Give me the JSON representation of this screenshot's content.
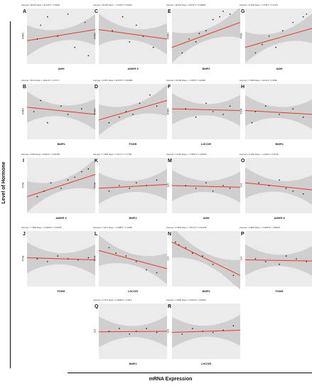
{
  "figure": {
    "y_label": "Level of Hormone",
    "x_label": "mRNA Expression"
  },
  "chart_data": [
    {
      "type": "scatter",
      "panel": "A",
      "equation": "Intercept = 68.604  Slope = 46.120  P = 0.42949",
      "xlabel": "AMH",
      "ylabel": "AMH",
      "ylim": [
        0,
        1
      ],
      "x": [
        0.15,
        0.2,
        0.3,
        0.45,
        0.6,
        0.7,
        0.85,
        0.9
      ],
      "y": [
        0.45,
        0.7,
        0.85,
        0.5,
        0.9,
        0.3,
        0.75,
        0.15
      ],
      "fit": [
        0.42,
        0.62
      ]
    },
    {
      "type": "scatter",
      "panel": "C",
      "equation": "Intercept = 68.336  Slope = -72.035  P = 0.46219",
      "xlabel": "AMHR II",
      "ylabel": "AMH",
      "ylim": [
        0,
        1
      ],
      "x": [
        0.2,
        0.35,
        0.45,
        0.55,
        0.65,
        0.8
      ],
      "y": [
        0.6,
        0.85,
        0.4,
        0.7,
        0.5,
        0.3
      ],
      "fit": [
        0.62,
        0.45
      ]
    },
    {
      "type": "scatter",
      "panel": "E",
      "equation": "Intercept = 48.918  Slope = 33.679  P = 0.038009",
      "xlabel": "BMP2",
      "ylabel": "AMH",
      "ylim": [
        0,
        1
      ],
      "x": [
        0.15,
        0.25,
        0.35,
        0.4,
        0.5,
        0.6,
        0.7,
        0.75,
        0.85
      ],
      "y": [
        0.2,
        0.45,
        0.4,
        0.55,
        0.6,
        0.8,
        0.85,
        0.95,
        0.9
      ],
      "fit": [
        0.3,
        0.75
      ]
    },
    {
      "type": "scatter",
      "panel": "G",
      "equation": "Intercept = 6.4440  Slope = 3.4793  P = 0.12101",
      "xlabel": "AMH",
      "ylabel": "FSH",
      "ylim": [
        0,
        1
      ],
      "x": [
        0.15,
        0.25,
        0.35,
        0.45,
        0.55,
        0.7,
        0.85,
        0.9
      ],
      "y": [
        0.2,
        0.35,
        0.5,
        0.3,
        0.6,
        0.75,
        0.85,
        0.9
      ],
      "fit": [
        0.3,
        0.65
      ]
    },
    {
      "type": "scatter",
      "panel": "B",
      "equation": "Intercept = 60.02  Slope = -2194.3  P = 0.67777",
      "xlabel": "BMP6",
      "ylabel": "AMH",
      "ylim": [
        0,
        1
      ],
      "x": [
        0.1,
        0.2,
        0.3,
        0.5,
        0.6,
        0.8
      ],
      "y": [
        0.5,
        0.7,
        0.3,
        0.6,
        0.45,
        0.55
      ],
      "fit": [
        0.58,
        0.45
      ]
    },
    {
      "type": "scatter",
      "panel": "D",
      "equation": "Intercept = 47.867  Slope = 65.878  P = 0.097889",
      "xlabel": "FSHR",
      "ylabel": "AMH",
      "ylim": [
        0,
        1
      ],
      "x": [
        0.15,
        0.3,
        0.4,
        0.5,
        0.6,
        0.75,
        0.85
      ],
      "y": [
        0.3,
        0.4,
        0.5,
        0.45,
        0.65,
        0.8,
        0.6
      ],
      "fit": [
        0.35,
        0.7
      ]
    },
    {
      "type": "scatter",
      "panel": "F",
      "equation": "Intercept = 60.096  Slope = -2.1078  P = 0.94668",
      "xlabel": "LHCGR",
      "ylabel": "AMH",
      "ylim": [
        0,
        1
      ],
      "x": [
        0.2,
        0.35,
        0.5,
        0.6,
        0.75,
        0.85
      ],
      "y": [
        0.55,
        0.4,
        0.65,
        0.5,
        0.45,
        0.6
      ],
      "fit": [
        0.55,
        0.52
      ]
    },
    {
      "type": "scatter",
      "panel": "H",
      "equation": "Intercept = 7.6699  Slope = 116.93  P = 0.6838",
      "xlabel": "BMP6",
      "ylabel": "FSH",
      "ylim": [
        0,
        1
      ],
      "x": [
        0.1,
        0.15,
        0.3,
        0.5,
        0.7,
        0.85
      ],
      "y": [
        0.3,
        0.5,
        0.6,
        0.45,
        0.55,
        0.4
      ],
      "fit": [
        0.52,
        0.45
      ]
    },
    {
      "type": "scatter",
      "panel": "I",
      "equation": "Intercept = 8.860  Slope = 8.0264  P = 0.005783",
      "xlabel": "AMHR II",
      "ylabel": "FSH",
      "ylim": [
        0,
        1
      ],
      "x": [
        0.15,
        0.25,
        0.35,
        0.5,
        0.6,
        0.7,
        0.8,
        0.9
      ],
      "y": [
        0.3,
        0.4,
        0.55,
        0.45,
        0.6,
        0.65,
        0.75,
        0.8
      ],
      "fit": [
        0.3,
        0.7
      ]
    },
    {
      "type": "scatter",
      "panel": "K",
      "equation": "Intercept = 7.3298  Slope = 0.2417  P = 0.77786",
      "xlabel": "BMP2",
      "ylabel": "FSH",
      "ylim": [
        0,
        1
      ],
      "x": [
        0.15,
        0.3,
        0.45,
        0.55,
        0.7,
        0.85
      ],
      "y": [
        0.4,
        0.5,
        0.45,
        0.55,
        0.5,
        0.6
      ],
      "fit": [
        0.45,
        0.52
      ]
    },
    {
      "type": "scatter",
      "panel": "M",
      "equation": "Intercept = 4.6766  Slope = -0.76607  P = 0.68330",
      "xlabel": "AMH",
      "ylabel": "LH",
      "ylim": [
        0,
        1
      ],
      "x": [
        0.2,
        0.35,
        0.5,
        0.6,
        0.75,
        0.85
      ],
      "y": [
        0.5,
        0.45,
        0.55,
        0.4,
        0.5,
        0.45
      ],
      "fit": [
        0.5,
        0.47
      ]
    },
    {
      "type": "scatter",
      "panel": "O",
      "equation": "Intercept = 5.2150  Slope = -2.1136  P = 0.46739",
      "xlabel": "AMHR II",
      "ylabel": "LH",
      "ylim": [
        0,
        1
      ],
      "x": [
        0.2,
        0.35,
        0.5,
        0.6,
        0.7,
        0.85
      ],
      "y": [
        0.55,
        0.5,
        0.6,
        0.45,
        0.4,
        0.35
      ],
      "fit": [
        0.55,
        0.42
      ]
    },
    {
      "type": "scatter",
      "panel": "J",
      "equation": "Intercept = 7.4695  Slope = -0.22046  P = 0.84408",
      "xlabel": "FSHR",
      "ylabel": "FSH",
      "ylim": [
        0,
        1
      ],
      "x": [
        0.15,
        0.3,
        0.45,
        0.6,
        0.75,
        0.9
      ],
      "y": [
        0.5,
        0.45,
        0.55,
        0.5,
        0.48,
        0.52
      ],
      "fit": [
        0.52,
        0.48
      ]
    },
    {
      "type": "scatter",
      "panel": "L",
      "equation": "Intercept = 7.9271  Slope = -3.2188  P = 0.10284",
      "xlabel": "LHCGR",
      "ylabel": "FSH",
      "ylim": [
        0,
        1
      ],
      "x": [
        0.15,
        0.25,
        0.4,
        0.55,
        0.7,
        0.85
      ],
      "y": [
        0.7,
        0.6,
        0.55,
        0.45,
        0.3,
        0.25
      ],
      "fit": [
        0.65,
        0.32
      ]
    },
    {
      "type": "scatter",
      "panel": "N",
      "equation": "Intercept = 6.3603  Slope = -760.12  P = 0.012218",
      "xlabel": "BMP6",
      "ylabel": "LH",
      "ylim": [
        0,
        1
      ],
      "x": [
        0.05,
        0.1,
        0.2,
        0.3,
        0.45,
        0.6,
        0.9
      ],
      "y": [
        0.8,
        0.75,
        0.7,
        0.6,
        0.55,
        0.4,
        0.2
      ],
      "fit": [
        0.8,
        0.2
      ]
    },
    {
      "type": "scatter",
      "panel": "P",
      "equation": "Intercept = 4.9581  Slope = -0.19636  P = 0.88428",
      "xlabel": "FSHR",
      "ylabel": "LH",
      "ylim": [
        0,
        1
      ],
      "x": [
        0.15,
        0.3,
        0.5,
        0.6,
        0.75,
        0.9
      ],
      "y": [
        0.5,
        0.45,
        0.4,
        0.55,
        0.5,
        0.45
      ],
      "fit": [
        0.48,
        0.46
      ]
    },
    {
      "type": "scatter",
      "panel": "Q",
      "equation": "Intercept = 4.7072  Slope = 0.13838  P = 0.9314",
      "xlabel": "BMP2",
      "ylabel": "LH",
      "ylim": [
        0,
        1
      ],
      "x": [
        0.15,
        0.3,
        0.45,
        0.55,
        0.7,
        0.85
      ],
      "y": [
        0.5,
        0.55,
        0.45,
        0.5,
        0.55,
        0.48
      ],
      "fit": [
        0.49,
        0.5
      ]
    },
    {
      "type": "scatter",
      "panel": "R",
      "equation": "Intercept = 4.6468  Slope = 0.40370  P = 0.81680",
      "xlabel": "LHCGR",
      "ylabel": "LH",
      "ylim": [
        0,
        1
      ],
      "x": [
        0.15,
        0.3,
        0.45,
        0.6,
        0.75,
        0.9
      ],
      "y": [
        0.45,
        0.55,
        0.5,
        0.48,
        0.52,
        0.6
      ],
      "fit": [
        0.48,
        0.52
      ]
    }
  ],
  "colors": {
    "band": "#cfcfcf",
    "panel": "#ebebeb",
    "fit": "#e8372c",
    "point": "#111111"
  }
}
